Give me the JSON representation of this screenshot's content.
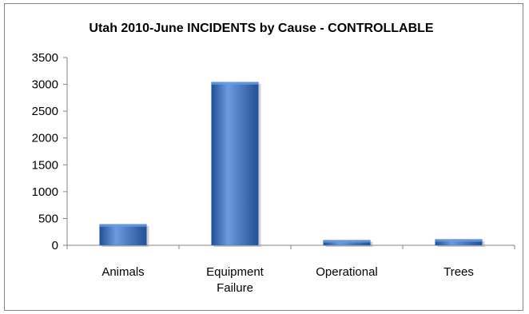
{
  "chart_data": {
    "type": "bar",
    "title": "Utah 2010-June INCIDENTS by Cause - CONTROLLABLE",
    "xlabel": "",
    "ylabel": "",
    "categories": [
      "Animals",
      "Equipment Failure",
      "Operational",
      "Trees"
    ],
    "category_lines": [
      [
        "Animals"
      ],
      [
        "Equipment",
        "Failure"
      ],
      [
        "Operational"
      ],
      [
        "Trees"
      ]
    ],
    "values": [
      390,
      3040,
      95,
      110
    ],
    "ylim": [
      0,
      3500
    ],
    "yticks": [
      "0",
      "500",
      "1000",
      "1500",
      "2000",
      "2500",
      "3000",
      "3500"
    ],
    "grid": false,
    "legend": "none",
    "colors": {
      "bar_light": "#6b9be0",
      "bar_mid": "#3d6fc0",
      "bar_dark": "#234f95",
      "axis": "#868686"
    }
  }
}
